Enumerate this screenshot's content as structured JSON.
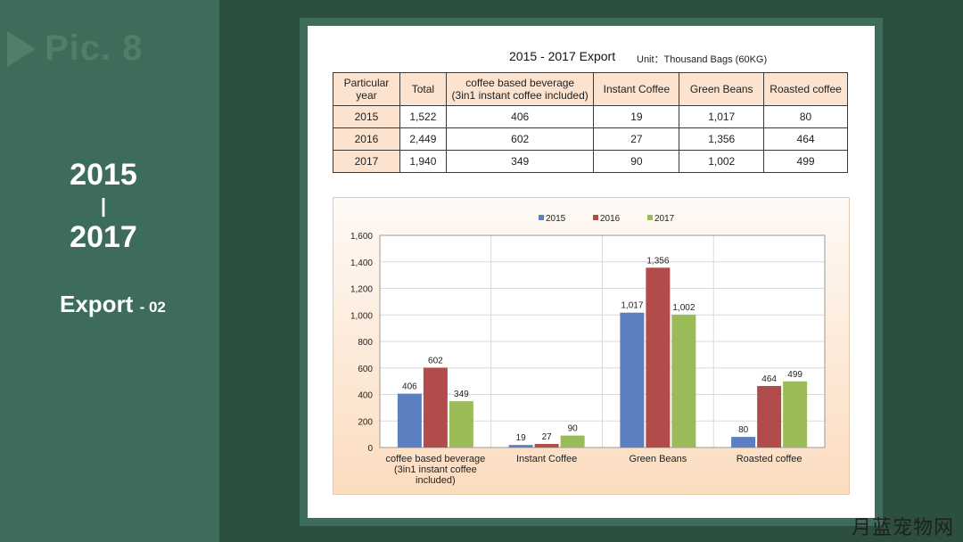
{
  "sidebar": {
    "pic_label": "Pic. 8",
    "year_start": "2015",
    "separator": "|",
    "year_end": "2017",
    "export_label": "Export",
    "export_num": "- 02"
  },
  "table": {
    "title": "2015 - 2017 Export",
    "unit": "Unit：Thousand Bags (60KG)",
    "headers": [
      "Particular year",
      "Total",
      "coffee based beverage (3in1 instant coffee included)",
      "Instant Coffee",
      "Green Beans",
      "Roasted coffee"
    ],
    "header_lines": [
      [
        "Particular",
        "year"
      ],
      [
        "Total"
      ],
      [
        "coffee based beverage",
        "(3in1 instant coffee included)"
      ],
      [
        "Instant Coffee"
      ],
      [
        "Green Beans"
      ],
      [
        "Roasted coffee"
      ]
    ],
    "rows": [
      [
        "2015",
        "1,522",
        "406",
        "19",
        "1,017",
        "80"
      ],
      [
        "2016",
        "2,449",
        "602",
        "27",
        "1,356",
        "464"
      ],
      [
        "2017",
        "1,940",
        "349",
        "90",
        "1,002",
        "499"
      ]
    ]
  },
  "chart_data": {
    "type": "bar",
    "categories": [
      "coffee based beverage (3in1 instant coffee included)",
      "Instant Coffee",
      "Green Beans",
      "Roasted coffee"
    ],
    "category_lines": [
      [
        "coffee based beverage",
        "(3in1 instant coffee",
        "included)"
      ],
      [
        "Instant Coffee"
      ],
      [
        "Green Beans"
      ],
      [
        "Roasted coffee"
      ]
    ],
    "series": [
      {
        "name": "2015",
        "values": [
          406,
          19,
          1017,
          80
        ],
        "labels": [
          "406",
          "19",
          "1,017",
          "80"
        ],
        "color": "#5b7fc1"
      },
      {
        "name": "2016",
        "values": [
          602,
          27,
          1356,
          464
        ],
        "labels": [
          "602",
          "27",
          "1,356",
          "464"
        ],
        "color": "#b24c4a"
      },
      {
        "name": "2017",
        "values": [
          349,
          90,
          1002,
          499
        ],
        "labels": [
          "349",
          "90",
          "1,002",
          "499"
        ],
        "color": "#9bbb59"
      }
    ],
    "ylim": [
      0,
      1600
    ],
    "yticks": [
      0,
      200,
      400,
      600,
      800,
      1000,
      1200,
      1400,
      1600
    ],
    "ytick_labels": [
      "0",
      "200",
      "400",
      "600",
      "800",
      "1,000",
      "1,200",
      "1,400",
      "1,600"
    ],
    "grid": true,
    "legend": "top-center"
  },
  "watermark": "月蓝宠物网"
}
